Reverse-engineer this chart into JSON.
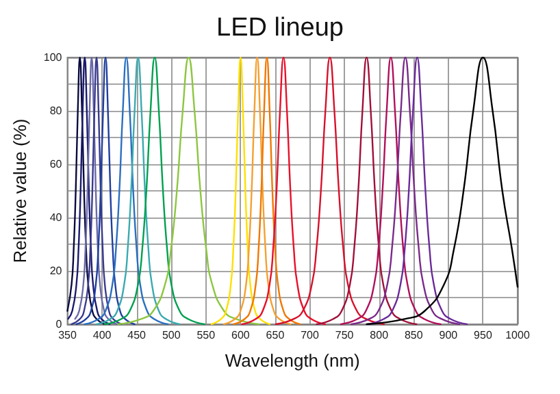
{
  "chart_data": {
    "type": "line",
    "title": "LED lineup",
    "xlabel": "Wavelength (nm)",
    "ylabel": "Relative value (%)",
    "xlim": [
      350,
      1000
    ],
    "xticks": [
      350,
      400,
      450,
      500,
      550,
      600,
      650,
      700,
      750,
      800,
      850,
      900,
      950,
      1000
    ],
    "ylim": [
      0,
      100
    ],
    "yticks": [
      0,
      {
        "value": 10,
        "label": null
      },
      20,
      {
        "value": 30,
        "label": null
      },
      40,
      {
        "value": 50,
        "label": null
      },
      60,
      {
        "value": 70,
        "label": null
      },
      80,
      {
        "value": 90,
        "label": null
      },
      100
    ],
    "grid": true,
    "marker": "none",
    "line_style": "solid",
    "series": [
      {
        "color": "#0a0a40",
        "x": [
          350,
          356,
          359,
          362,
          365,
          368,
          371,
          374,
          377,
          380,
          386,
          392,
          404
        ],
        "values": [
          5,
          15,
          28,
          50,
          80,
          100,
          80,
          50,
          28,
          15,
          5,
          2,
          0
        ]
      },
      {
        "color": "#1a1a6e",
        "x": [
          351,
          357,
          363,
          366,
          369,
          372,
          375,
          378,
          381,
          384,
          387,
          393,
          399,
          411
        ],
        "values": [
          2,
          5,
          15,
          28,
          50,
          80,
          100,
          80,
          50,
          28,
          15,
          5,
          2,
          0
        ]
      },
      {
        "color": "#6a6aa8",
        "x": [
          361,
          367,
          373,
          376,
          379,
          382,
          385,
          388,
          391,
          394,
          397,
          403,
          409,
          421
        ],
        "values": [
          2,
          5,
          15,
          28,
          50,
          80,
          100,
          80,
          50,
          28,
          15,
          5,
          2,
          0
        ]
      },
      {
        "color": "#3a3a8c",
        "x": [
          356,
          368,
          374,
          380,
          383,
          386,
          389,
          392,
          395,
          398,
          401,
          404,
          410,
          416,
          428
        ],
        "values": [
          0,
          2,
          5,
          15,
          28,
          50,
          80,
          100,
          80,
          50,
          28,
          15,
          5,
          2,
          0
        ]
      },
      {
        "color": "#1f3f9f",
        "x": [
          363,
          377,
          384,
          391,
          394.5,
          398,
          401.5,
          405,
          408.5,
          412,
          415.5,
          419,
          426,
          433,
          447
        ],
        "values": [
          0,
          2,
          5,
          15,
          28,
          50,
          80,
          100,
          80,
          50,
          28,
          15,
          5,
          2,
          0
        ]
      },
      {
        "color": "#2a6fc0",
        "x": [
          375,
          395,
          405,
          415,
          420,
          425,
          430,
          435,
          440,
          445,
          450,
          455,
          465,
          475,
          495
        ],
        "values": [
          0,
          2,
          5,
          15,
          28,
          50,
          80,
          100,
          80,
          50,
          28,
          15,
          5,
          2,
          0
        ]
      },
      {
        "color": "#3aaab0",
        "x": [
          392,
          412,
          422,
          432,
          437,
          442,
          447,
          452,
          457,
          462,
          467,
          472,
          482,
          492,
          512
        ],
        "values": [
          0,
          2,
          5,
          15,
          28,
          50,
          80,
          100,
          80,
          50,
          28,
          15,
          5,
          2,
          0
        ]
      },
      {
        "color": "#00a050",
        "x": [
          404,
          428,
          440,
          452,
          458,
          464,
          470,
          476,
          482,
          488,
          494,
          500,
          512,
          524,
          548
        ],
        "values": [
          0,
          2,
          5,
          15,
          28,
          50,
          80,
          100,
          80,
          50,
          28,
          15,
          5,
          2,
          0
        ]
      },
      {
        "color": "#8cc63f",
        "x": [
          423,
          457,
          474,
          491,
          499.5,
          508,
          516.5,
          525,
          533.5,
          542,
          550.5,
          559,
          576,
          593,
          627
        ],
        "values": [
          0,
          2,
          5,
          15,
          28,
          50,
          80,
          100,
          80,
          50,
          28,
          15,
          5,
          2,
          0
        ]
      },
      {
        "color": "#ffe000",
        "x": [
          558,
          572,
          579,
          586,
          589.5,
          593,
          596.5,
          600,
          603.5,
          607,
          610.5,
          614,
          621,
          628,
          642
        ],
        "values": [
          0,
          2,
          5,
          15,
          28,
          50,
          80,
          100,
          80,
          50,
          28,
          15,
          5,
          2,
          0
        ]
      },
      {
        "color": "#f5a030",
        "x": [
          576,
          592,
          600,
          608,
          612,
          616,
          620,
          624,
          628,
          632,
          636,
          640,
          648,
          656,
          672
        ],
        "values": [
          0,
          2,
          5,
          15,
          28,
          50,
          80,
          100,
          80,
          50,
          28,
          15,
          5,
          2,
          0
        ]
      },
      {
        "color": "#f07800",
        "x": [
          590,
          606,
          614,
          622,
          626,
          630,
          634,
          638,
          642,
          646,
          650,
          654,
          662,
          670,
          686
        ],
        "values": [
          0,
          2,
          5,
          15,
          28,
          50,
          80,
          100,
          80,
          50,
          28,
          15,
          5,
          2,
          0
        ]
      },
      {
        "color": "#e8102a",
        "x": [
          602,
          622,
          632,
          642,
          647,
          652,
          657,
          662,
          667,
          672,
          677,
          682,
          692,
          702,
          722
        ],
        "values": [
          0,
          2,
          5,
          15,
          28,
          50,
          80,
          100,
          80,
          50,
          28,
          15,
          5,
          2,
          0
        ]
      },
      {
        "color": "#d8102a",
        "x": [
          651,
          677,
          690,
          703,
          709.5,
          716,
          722.5,
          729,
          735.5,
          742,
          748.5,
          755,
          768,
          781,
          807
        ],
        "values": [
          0,
          2,
          5,
          15,
          28,
          50,
          80,
          100,
          80,
          50,
          28,
          15,
          5,
          2,
          0
        ]
      },
      {
        "color": "#a0103a",
        "x": [
          710,
          734,
          746,
          758,
          764,
          770,
          776,
          782,
          788,
          794,
          800,
          806,
          818,
          830,
          854
        ],
        "values": [
          0,
          2,
          5,
          15,
          28,
          50,
          80,
          100,
          80,
          50,
          28,
          15,
          5,
          2,
          0
        ]
      },
      {
        "color": "#b0105a",
        "x": [
          745,
          769,
          781,
          793,
          799,
          805,
          811,
          817,
          823,
          829,
          835,
          841,
          853,
          865,
          889
        ],
        "values": [
          0,
          2,
          5,
          15,
          28,
          50,
          80,
          100,
          80,
          50,
          28,
          15,
          5,
          2,
          0
        ]
      },
      {
        "color": "#7a2a8a",
        "x": [
          760,
          786,
          799,
          812,
          818.5,
          825,
          831.5,
          838,
          844.5,
          851,
          857.5,
          864,
          877,
          890,
          916
        ],
        "values": [
          0,
          2,
          5,
          15,
          28,
          50,
          80,
          100,
          80,
          50,
          28,
          15,
          5,
          2,
          0
        ]
      },
      {
        "color": "#6a2a9a",
        "x": [
          783,
          807,
          819,
          831,
          837,
          843,
          849,
          855,
          861,
          867,
          873,
          879,
          891,
          903,
          927
        ],
        "values": [
          0,
          2,
          5,
          15,
          28,
          50,
          80,
          100,
          80,
          50,
          28,
          15,
          5,
          2,
          0
        ]
      },
      {
        "color": "#000000",
        "x": [
          782,
          838,
          866,
          894,
          908,
          922,
          936,
          950,
          964,
          978,
          992,
          1000
        ],
        "values": [
          0,
          2,
          5,
          15,
          28,
          50,
          80,
          100,
          80,
          50,
          28,
          14
        ]
      }
    ]
  }
}
